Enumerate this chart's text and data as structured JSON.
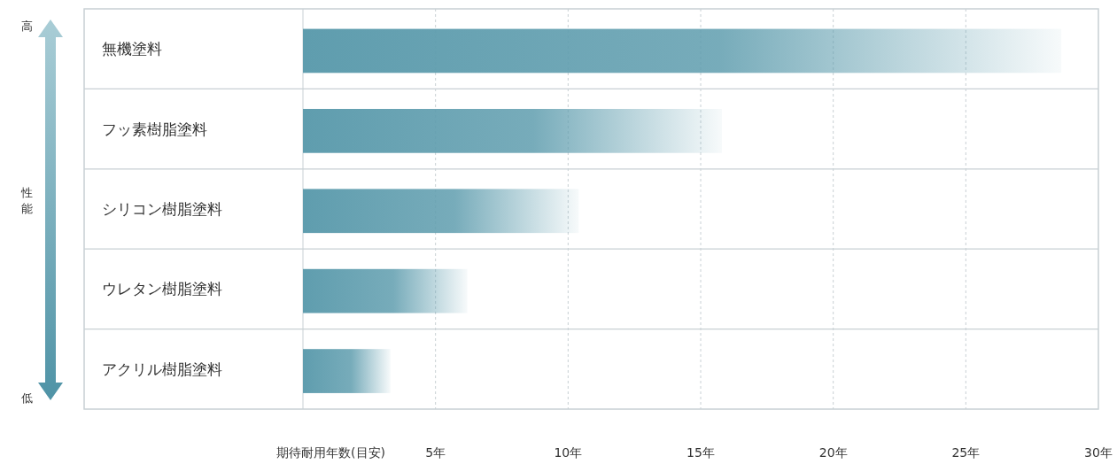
{
  "chart_data": {
    "type": "bar",
    "orientation": "horizontal",
    "categories": [
      "無機塗料",
      "フッ素樹脂塗料",
      "シリコン樹脂塗料",
      "ウレタン樹脂塗料",
      "アクリル樹脂塗料"
    ],
    "values": [
      28.6,
      15.8,
      10.4,
      6.2,
      3.3
    ],
    "color": "#5f9dae",
    "xlabel": "期待耐用年数(目安)",
    "annotations": [
      "高",
      "性能",
      "低"
    ],
    "xlim": [
      0,
      30
    ],
    "xticks": [
      {
        "value": 5,
        "label": "5年"
      },
      {
        "value": 10,
        "label": "10年"
      },
      {
        "value": 15,
        "label": "15年"
      },
      {
        "value": 20,
        "label": "20年"
      },
      {
        "value": 25,
        "label": "25年"
      },
      {
        "value": 30,
        "label": "30年"
      }
    ],
    "grid": "x"
  }
}
